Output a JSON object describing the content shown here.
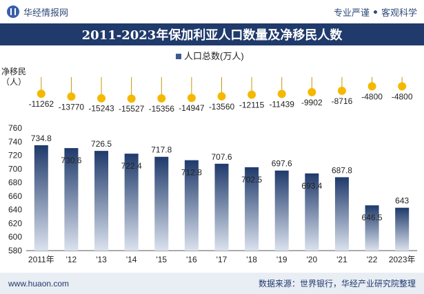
{
  "header": {
    "brand": "华经情报网",
    "tagline_left": "专业严谨",
    "tagline_right": "客观科学"
  },
  "footer": {
    "url": "www.huaon.com",
    "source": "数据来源：世界银行，华经产业研究院整理"
  },
  "colors": {
    "title_bg": "#1f3a6b",
    "bar_top": "#1f3a6b",
    "bar_bottom": "#d6deeb",
    "dot": "#f5b800",
    "stem": "#c79700"
  },
  "chart_data": {
    "type": "bar",
    "title": "2011-2023年保加利亚人口数量及净移民人数",
    "legend": {
      "label": "人口总数(万人)",
      "position": "top"
    },
    "categories": [
      "2011年",
      "'12",
      "'13",
      "'14",
      "'15",
      "'16",
      "'17",
      "'18",
      "'19",
      "'20",
      "'21",
      "'22",
      "2023年"
    ],
    "series": [
      {
        "name": "人口总数(万人)",
        "values": [
          734.8,
          730.6,
          726.5,
          722.4,
          717.8,
          712.8,
          707.6,
          702.5,
          697.6,
          693.4,
          687.8,
          646.5,
          643
        ]
      }
    ],
    "y_axis": {
      "min": 580,
      "max": 760,
      "ticks": [
        580,
        600,
        620,
        640,
        660,
        680,
        700,
        720,
        740,
        760
      ]
    },
    "net_migration": {
      "label_line1": "净移民",
      "label_line2": "（人）",
      "values": [
        -11262,
        -13770,
        -15243,
        -15527,
        -15356,
        -14947,
        -13560,
        -12115,
        -11439,
        -9902,
        -8716,
        -4800,
        -4800
      ],
      "labels": [
        "-11262",
        "-13770",
        "-15243",
        "-15527",
        "-15356",
        "-14947",
        "-13560",
        "-12115",
        "-11439",
        "-9902",
        "-8716",
        "-4800",
        "-4800"
      ]
    }
  }
}
